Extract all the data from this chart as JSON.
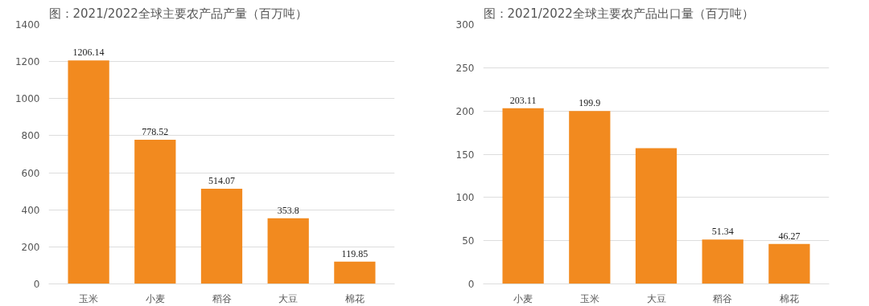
{
  "chart_data": [
    {
      "type": "bar",
      "title": "图：2021/2022全球主要农产品产量（百万吨）",
      "categories": [
        "玉米",
        "小麦",
        "稻谷",
        "大豆",
        "棉花"
      ],
      "values": [
        1206.14,
        778.52,
        514.07,
        353.8,
        119.85
      ],
      "color": "#f28a1f",
      "ylim": [
        0,
        1400
      ],
      "yticks": [
        0,
        200,
        400,
        600,
        800,
        1000,
        1200,
        1400
      ],
      "grid": "y",
      "data_labels": true
    },
    {
      "type": "bar",
      "title": "图：2021/2022全球主要农产品出口量（百万吨）",
      "categories": [
        "小麦",
        "玉米",
        "大豆",
        "稻谷",
        "棉花"
      ],
      "values": [
        203.11,
        199.9,
        157,
        51.34,
        46.27
      ],
      "value_labels": [
        "203.11",
        "199.9",
        null,
        "51.34",
        "46.27"
      ],
      "color": "#f28a1f",
      "ylim": [
        0,
        300
      ],
      "yticks": [
        0,
        50,
        100,
        150,
        200,
        250,
        300
      ],
      "grid": "y"
    }
  ]
}
